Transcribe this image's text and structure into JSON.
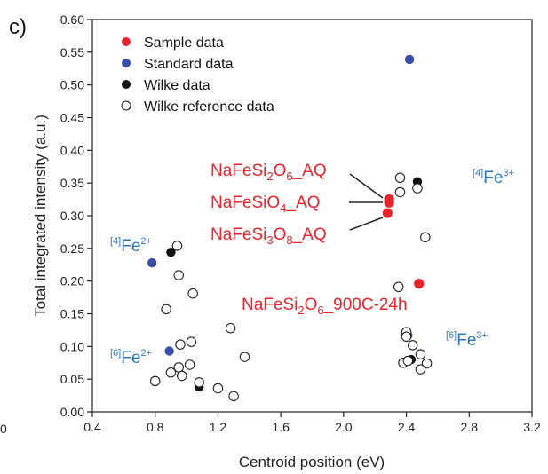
{
  "panel_label": "c)",
  "edge_fragment": "0",
  "colors": {
    "sample": "#e8242b",
    "standard": "#3a4ea8",
    "wilke": "#111111",
    "reference_stroke": "#222222",
    "annotation_red": "#e8242b",
    "annotation_blue": "#2f78c0"
  },
  "chart_data": {
    "type": "scatter",
    "xlabel": "Centroid position (eV)",
    "ylabel": "Total integrated intensity (a.u.)",
    "xlim": [
      0.4,
      3.2
    ],
    "ylim": [
      0.0,
      0.6
    ],
    "x_ticks": [
      "0.4",
      "0.8",
      "1.2",
      "1.6",
      "2.0",
      "2.4",
      "2.8",
      "3.2"
    ],
    "y_ticks": [
      "0.00",
      "0.05",
      "0.10",
      "0.15",
      "0.20",
      "0.25",
      "0.30",
      "0.35",
      "0.40",
      "0.45",
      "0.50",
      "0.55",
      "0.60"
    ],
    "grid": false,
    "legend_position": "top-left",
    "legend": [
      "Sample data",
      "Standard data",
      "Wilke data",
      "Wilke reference data"
    ],
    "series": [
      {
        "name": "Sample data",
        "marker": "filled",
        "color": "#e8242b",
        "points": [
          [
            2.29,
            0.325
          ],
          [
            2.29,
            0.32
          ],
          [
            2.28,
            0.304
          ],
          [
            2.48,
            0.196
          ]
        ]
      },
      {
        "name": "Standard data",
        "marker": "filled",
        "color": "#3a4ea8",
        "points": [
          [
            2.42,
            0.539
          ],
          [
            0.78,
            0.228
          ],
          [
            0.89,
            0.093
          ],
          [
            2.41,
            0.117
          ]
        ]
      },
      {
        "name": "Wilke data",
        "marker": "filled",
        "color": "#111111",
        "points": [
          [
            2.47,
            0.352
          ],
          [
            0.9,
            0.244
          ],
          [
            1.08,
            0.038
          ],
          [
            2.43,
            0.08
          ]
        ]
      },
      {
        "name": "Wilke reference data",
        "marker": "open",
        "color": "#222222",
        "points": [
          [
            0.94,
            0.254
          ],
          [
            0.95,
            0.209
          ],
          [
            1.04,
            0.181
          ],
          [
            0.87,
            0.157
          ],
          [
            0.96,
            0.103
          ],
          [
            1.03,
            0.107
          ],
          [
            1.28,
            0.128
          ],
          [
            1.37,
            0.084
          ],
          [
            0.8,
            0.047
          ],
          [
            0.9,
            0.06
          ],
          [
            0.95,
            0.068
          ],
          [
            0.97,
            0.055
          ],
          [
            1.02,
            0.072
          ],
          [
            1.08,
            0.045
          ],
          [
            1.2,
            0.036
          ],
          [
            1.3,
            0.024
          ],
          [
            2.36,
            0.358
          ],
          [
            2.36,
            0.336
          ],
          [
            2.47,
            0.342
          ],
          [
            2.52,
            0.267
          ],
          [
            2.35,
            0.191
          ],
          [
            2.4,
            0.122
          ],
          [
            2.4,
            0.115
          ],
          [
            2.44,
            0.102
          ],
          [
            2.49,
            0.088
          ],
          [
            2.53,
            0.074
          ],
          [
            2.38,
            0.075
          ],
          [
            2.41,
            0.078
          ],
          [
            2.49,
            0.065
          ]
        ]
      }
    ],
    "annotations": {
      "sample": [
        {
          "id": "nafesi2o6",
          "parts": [
            {
              "t": "NaFeSi"
            },
            {
              "t": "2",
              "sub": true
            },
            {
              "t": "O"
            },
            {
              "t": "6",
              "sub": true
            },
            {
              "t": "_AQ"
            }
          ]
        },
        {
          "id": "nafesio4",
          "parts": [
            {
              "t": "NaFeSiO"
            },
            {
              "t": "4",
              "sub": true
            },
            {
              "t": "_AQ"
            }
          ]
        },
        {
          "id": "nafesi3o8",
          "parts": [
            {
              "t": "NaFeSi"
            },
            {
              "t": "3",
              "sub": true
            },
            {
              "t": "O"
            },
            {
              "t": "8",
              "sub": true
            },
            {
              "t": "_AQ"
            }
          ]
        },
        {
          "id": "nafesi2o6-900c",
          "parts": [
            {
              "t": "NaFeSi"
            },
            {
              "t": "2",
              "sub": true
            },
            {
              "t": "O"
            },
            {
              "t": "6",
              "sub": true
            },
            {
              "t": "_900C-24h"
            }
          ]
        }
      ],
      "species": [
        {
          "id": "iv-fe3",
          "coord": "[4]",
          "ion": "Fe",
          "charge": "3+"
        },
        {
          "id": "vi-fe3",
          "coord": "[6]",
          "ion": "Fe",
          "charge": "3+"
        },
        {
          "id": "iv-fe2",
          "coord": "[4]",
          "ion": "Fe",
          "charge": "2+"
        },
        {
          "id": "vi-fe2",
          "coord": "[6]",
          "ion": "Fe",
          "charge": "2+"
        }
      ]
    }
  }
}
